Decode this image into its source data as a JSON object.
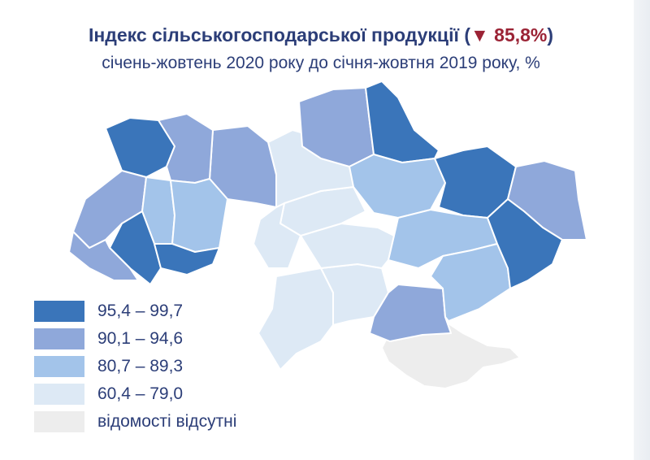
{
  "title": {
    "main": "Індекс сільськогосподарської продукції",
    "paren_open": " (",
    "indicator": "▼ 85,8%",
    "paren_close": ")",
    "subtitle": "січень-жовтень 2020 року до січня-жовтня 2019 року, %"
  },
  "colors": {
    "class1": "#3a75ba",
    "class2": "#8fa8da",
    "class3": "#a3c4ea",
    "class4": "#dde9f5",
    "class5": "#ededed",
    "border": "#ffffff",
    "text": "#2c3e78",
    "decrease": "#9b2335"
  },
  "legend": [
    {
      "label": "95,4 – 99,7",
      "color": "#3a75ba"
    },
    {
      "label": "90,1 – 94,6",
      "color": "#8fa8da"
    },
    {
      "label": "80,7 – 89,3",
      "color": "#a3c4ea"
    },
    {
      "label": "60,4 – 79,0",
      "color": "#dde9f5"
    },
    {
      "label": "відомості відсутні",
      "color": "#ededed"
    }
  ]
}
